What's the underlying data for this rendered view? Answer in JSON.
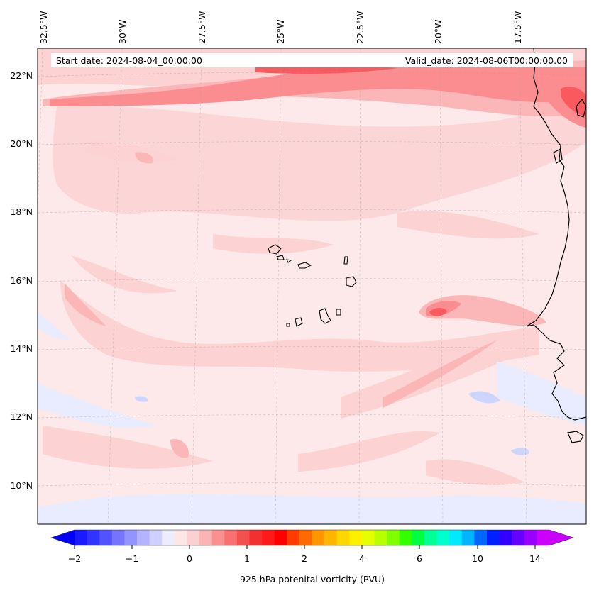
{
  "map": {
    "start_date": "Start date: 2024-08-04_00:00:00",
    "valid_date": "Valid_date: 2024-08-06T00:00:00.00",
    "lon_labels": [
      "32.5°W",
      "30°W",
      "27.5°W",
      "25°W",
      "22.5°W",
      "20°W",
      "17.5°W"
    ],
    "lat_labels": [
      "22°N",
      "20°N",
      "18°N",
      "16°N",
      "14°N",
      "12°N",
      "10°N"
    ],
    "extent": {
      "lon": [
        -32.5,
        -15
      ],
      "lat": [
        9,
        22.8
      ]
    },
    "field_colors": {
      "background": "#fde9ea",
      "light": "#fcd2d3",
      "medium": "#fbb6b8",
      "strong": "#fb8c8f",
      "strongest": "#fa5a5e",
      "negative": "#e9ecfe",
      "negative_mid": "#cdd5fd"
    },
    "coast_color": "#000000"
  },
  "colorbar": {
    "title": "925 hPa potenital vorticity (PVU)",
    "tick_labels": [
      "−2",
      "−1",
      "0",
      "1",
      "2",
      "4",
      "6",
      "10",
      "14"
    ],
    "colors": [
      "#1a1aff",
      "#3333ff",
      "#5252ff",
      "#7474ff",
      "#9494ff",
      "#b3b3ff",
      "#d0d0ff",
      "#ececfe",
      "#fde6e6",
      "#fbd0d0",
      "#fbb4b4",
      "#fa9090",
      "#f87070",
      "#f55050",
      "#f33030",
      "#ff1a1a",
      "#ff0000",
      "#ff3c00",
      "#ff6a00",
      "#ff9500",
      "#ffb400",
      "#ffd600",
      "#fff000",
      "#e6ff00",
      "#b8ff00",
      "#80ff00",
      "#33ff00",
      "#00ff40",
      "#00ff99",
      "#00ffcc",
      "#00eaff",
      "#00b4ff",
      "#0066ff",
      "#0020ff",
      "#3300ff",
      "#6600ff",
      "#9900ff",
      "#cc00ff"
    ],
    "extend_low": "#0000ff",
    "extend_high": "#cc00ff"
  }
}
